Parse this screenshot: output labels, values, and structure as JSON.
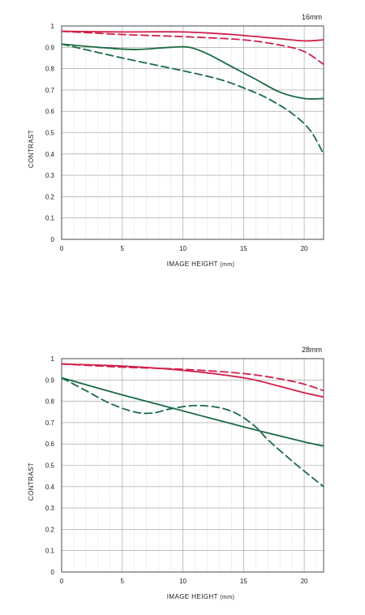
{
  "chart_data": [
    {
      "type": "line",
      "title": "16mm",
      "xlabel": "IMAGE HEIGHT",
      "xunit": "(mm)",
      "ylabel": "CONTRAST",
      "xlim": [
        0,
        21.6
      ],
      "ylim": [
        0,
        1
      ],
      "xticks": [
        0,
        5,
        10,
        15,
        20
      ],
      "yticks": [
        0,
        0.1,
        0.2,
        0.3,
        0.4,
        0.5,
        0.6,
        0.7,
        0.8,
        0.9,
        1
      ],
      "ytick_labels": [
        "0",
        "0.1",
        "0.2",
        "0.3",
        "0.4",
        "0.5",
        "0.6",
        "0.7",
        "0.8",
        "0.9",
        "1"
      ],
      "grid": true,
      "colors": {
        "red": "#d0204a",
        "green": "#1a6b44"
      },
      "series": [
        {
          "color": "red",
          "style": "solid",
          "x": [
            0,
            5,
            10,
            14,
            18,
            20,
            21.6
          ],
          "y": [
            0.975,
            0.972,
            0.972,
            0.96,
            0.94,
            0.93,
            0.935
          ]
        },
        {
          "color": "red",
          "style": "dashed",
          "x": [
            0,
            5,
            10,
            15,
            18,
            20,
            21.6
          ],
          "y": [
            0.975,
            0.96,
            0.95,
            0.935,
            0.91,
            0.88,
            0.82
          ]
        },
        {
          "color": "green",
          "style": "solid",
          "x": [
            0,
            3,
            6,
            9,
            10.5,
            12,
            14,
            16,
            18,
            20,
            21.6
          ],
          "y": [
            0.915,
            0.9,
            0.89,
            0.9,
            0.9,
            0.87,
            0.81,
            0.75,
            0.69,
            0.66,
            0.66
          ]
        },
        {
          "color": "green",
          "style": "dashed",
          "x": [
            0,
            5,
            10,
            13,
            15,
            17,
            19,
            20.5,
            21.6
          ],
          "y": [
            0.915,
            0.85,
            0.79,
            0.75,
            0.71,
            0.66,
            0.59,
            0.51,
            0.4
          ]
        }
      ]
    },
    {
      "type": "line",
      "title": "28mm",
      "xlabel": "IMAGE HEIGHT",
      "xunit": "(mm)",
      "ylabel": "CONTRAST",
      "xlim": [
        0,
        21.6
      ],
      "ylim": [
        0,
        1
      ],
      "xticks": [
        0,
        5,
        10,
        15,
        20
      ],
      "yticks": [
        0,
        0.1,
        0.2,
        0.3,
        0.4,
        0.5,
        0.6,
        0.7,
        0.8,
        0.9,
        1
      ],
      "ytick_labels": [
        "0",
        "0.1",
        "0.2",
        "0.3",
        "0.4",
        "0.5",
        "0.6",
        "0.7",
        "0.8",
        "0.9",
        "1"
      ],
      "grid": true,
      "colors": {
        "red": "#d0204a",
        "green": "#1a6b44"
      },
      "series": [
        {
          "color": "red",
          "style": "solid",
          "x": [
            0,
            5,
            10,
            15,
            18,
            20,
            21.6
          ],
          "y": [
            0.975,
            0.965,
            0.945,
            0.91,
            0.87,
            0.84,
            0.82
          ]
        },
        {
          "color": "red",
          "style": "dashed",
          "x": [
            0,
            5,
            10,
            15,
            18,
            20,
            21.6
          ],
          "y": [
            0.975,
            0.96,
            0.95,
            0.93,
            0.905,
            0.88,
            0.85
          ]
        },
        {
          "color": "green",
          "style": "solid",
          "x": [
            0,
            5,
            10,
            15,
            20,
            21.6
          ],
          "y": [
            0.91,
            0.83,
            0.755,
            0.68,
            0.61,
            0.59
          ]
        },
        {
          "color": "green",
          "style": "dashed",
          "x": [
            0,
            2,
            4,
            6,
            7.5,
            9,
            11,
            13,
            14.5,
            16,
            17,
            19,
            20.5,
            21.6
          ],
          "y": [
            0.91,
            0.85,
            0.79,
            0.75,
            0.745,
            0.765,
            0.78,
            0.77,
            0.74,
            0.68,
            0.62,
            0.52,
            0.45,
            0.4
          ]
        }
      ]
    }
  ]
}
